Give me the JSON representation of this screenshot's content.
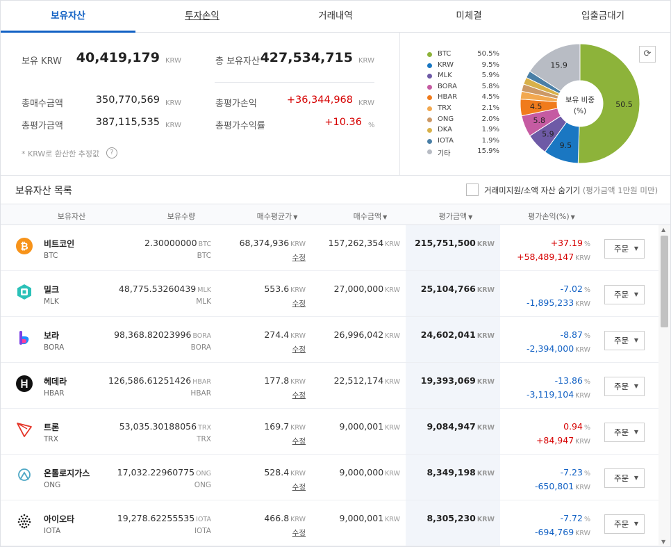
{
  "tabs": [
    {
      "label": "보유자산"
    },
    {
      "label": "투자손익"
    },
    {
      "label": "거래내역"
    },
    {
      "label": "미체결"
    },
    {
      "label": "입출금대기"
    }
  ],
  "summary": {
    "krw_label": "보유 KRW",
    "krw_value": "40,419,179",
    "krw_unit": "KRW",
    "total_label": "총 보유자산",
    "total_value": "427,534,715",
    "total_unit": "KRW",
    "buy_label": "총매수금액",
    "buy_value": "350,770,569",
    "buy_unit": "KRW",
    "pl_label": "총평가손익",
    "pl_value": "+36,344,968",
    "pl_unit": "KRW",
    "eval_label": "총평가금액",
    "eval_value": "387,115,535",
    "eval_unit": "KRW",
    "rate_label": "총평가수익률",
    "rate_value": "+10.36",
    "rate_unit": "%",
    "note": "* KRW로 환산한 추정값",
    "help_icon": "?"
  },
  "allocation": {
    "center_label_1": "보유 비중",
    "center_label_2": "(%)",
    "refresh_icon": "⟳",
    "legend": [
      {
        "name": "BTC",
        "pct": "50.5%",
        "value": 50.5,
        "color": "#8db33a"
      },
      {
        "name": "KRW",
        "pct": "9.5%",
        "value": 9.5,
        "color": "#1a77c2"
      },
      {
        "name": "MLK",
        "pct": "5.9%",
        "value": 5.9,
        "color": "#6e5aa6"
      },
      {
        "name": "BORA",
        "pct": "5.8%",
        "value": 5.8,
        "color": "#c55ba2"
      },
      {
        "name": "HBAR",
        "pct": "4.5%",
        "value": 4.5,
        "color": "#f07b1c"
      },
      {
        "name": "TRX",
        "pct": "2.1%",
        "value": 2.1,
        "color": "#f2a84f"
      },
      {
        "name": "ONG",
        "pct": "2.0%",
        "value": 2.0,
        "color": "#cc9966"
      },
      {
        "name": "DKA",
        "pct": "1.9%",
        "value": 1.9,
        "color": "#d8b14a"
      },
      {
        "name": "IOTA",
        "pct": "1.9%",
        "value": 1.9,
        "color": "#4a7fa6"
      },
      {
        "name": "기타",
        "pct": "15.9%",
        "value": 15.9,
        "color": "#b8bcc4"
      }
    ],
    "slice_labels": [
      "50.5",
      "9.5",
      "5.9",
      "5.8",
      "4.5",
      "",
      "",
      "",
      "",
      "15.9"
    ]
  },
  "list": {
    "title": "보유자산 목록",
    "hide_label": "거래미지원/소액 자산 숨기기",
    "hide_sub": "(평가금액 1만원 미만)",
    "columns": {
      "asset": "보유자산",
      "qty": "보유수량",
      "avg": "매수평균가",
      "buy": "매수금액",
      "eval": "평가금액",
      "pl": "평가손익(%)"
    },
    "edit_label": "수정",
    "order_label": "주문",
    "unit_krw": "KRW",
    "unit_pct": "%",
    "rows": [
      {
        "name": "비트코인",
        "symbol": "BTC",
        "qty": "2.30000000",
        "qty_unit": "BTC",
        "avg": "68,374,936",
        "buy": "157,262,354",
        "eval": "215,751,500",
        "pl_pct": "+37.19",
        "pl_amt": "+58,489,147",
        "trend": "up",
        "icon": "btc-icon"
      },
      {
        "name": "밀크",
        "symbol": "MLK",
        "qty": "48,775.53260439",
        "qty_unit": "MLK",
        "avg": "553.6",
        "buy": "27,000,000",
        "eval": "25,104,766",
        "pl_pct": "-7.02",
        "pl_amt": "-1,895,233",
        "trend": "down",
        "icon": "mlk-icon"
      },
      {
        "name": "보라",
        "symbol": "BORA",
        "qty": "98,368.82023996",
        "qty_unit": "BORA",
        "avg": "274.4",
        "buy": "26,996,042",
        "eval": "24,602,041",
        "pl_pct": "-8.87",
        "pl_amt": "-2,394,000",
        "trend": "down",
        "icon": "bora-icon"
      },
      {
        "name": "헤데라",
        "symbol": "HBAR",
        "qty": "126,586.61251426",
        "qty_unit": "HBAR",
        "avg": "177.8",
        "buy": "22,512,174",
        "eval": "19,393,069",
        "pl_pct": "-13.86",
        "pl_amt": "-3,119,104",
        "trend": "down",
        "icon": "hbar-icon"
      },
      {
        "name": "트론",
        "symbol": "TRX",
        "qty": "53,035.30188056",
        "qty_unit": "TRX",
        "avg": "169.7",
        "buy": "9,000,001",
        "eval": "9,084,947",
        "pl_pct": "0.94",
        "pl_amt": "+84,947",
        "trend": "up",
        "icon": "trx-icon"
      },
      {
        "name": "온톨로지가스",
        "symbol": "ONG",
        "qty": "17,032.22960775",
        "qty_unit": "ONG",
        "avg": "528.4",
        "buy": "9,000,000",
        "eval": "8,349,198",
        "pl_pct": "-7.23",
        "pl_amt": "-650,801",
        "trend": "down",
        "icon": "ong-icon"
      },
      {
        "name": "아이오타",
        "symbol": "IOTA",
        "qty": "19,278.62255535",
        "qty_unit": "IOTA",
        "avg": "466.8",
        "buy": "9,000,001",
        "eval": "8,305,230",
        "pl_pct": "-7.72",
        "pl_amt": "-694,769",
        "trend": "down",
        "icon": "iota-icon"
      }
    ]
  }
}
